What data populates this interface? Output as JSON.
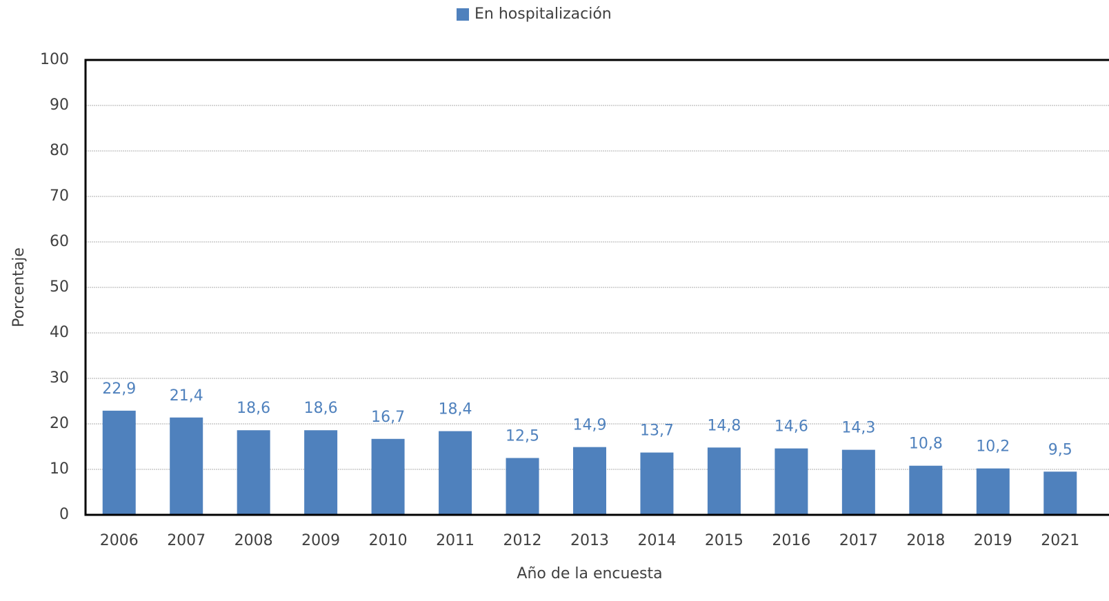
{
  "chart_data": {
    "type": "bar",
    "x_label": "Año de la encuesta",
    "y_label": "Porcentaje",
    "categories": [
      "2006",
      "2007",
      "2008",
      "2009",
      "2010",
      "2011",
      "2012",
      "2013",
      "2014",
      "2015",
      "2016",
      "2017",
      "2018",
      "2019",
      "2021"
    ],
    "series": [
      {
        "name": "En hospitalización",
        "color": "#4f81bd",
        "values": [
          22.9,
          21.4,
          18.6,
          18.6,
          16.7,
          18.4,
          12.5,
          14.9,
          13.7,
          14.8,
          14.6,
          14.3,
          10.8,
          10.2,
          9.5
        ],
        "value_labels": [
          "22,9",
          "21,4",
          "18,6",
          "18,6",
          "16,7",
          "18,4",
          "12,5",
          "14,9",
          "13,7",
          "14,8",
          "14,6",
          "14,3",
          "10,8",
          "10,2",
          "9,5"
        ]
      }
    ],
    "ylim": [
      0,
      100
    ],
    "yticks": [
      0,
      10,
      20,
      30,
      40,
      50,
      60,
      70,
      80,
      90,
      100
    ],
    "grid": true,
    "legend": "top"
  }
}
